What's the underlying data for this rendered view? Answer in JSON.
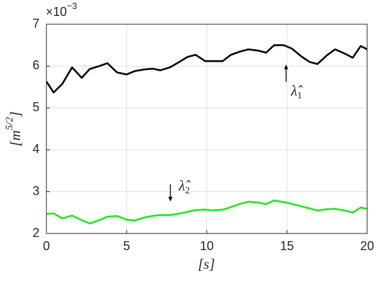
{
  "chart_data": {
    "type": "line",
    "x": [
      0,
      0.45,
      1.0,
      1.6,
      2.2,
      2.7,
      3.3,
      3.8,
      4.4,
      5.0,
      5.5,
      6.1,
      6.6,
      7.1,
      7.7,
      8.2,
      8.8,
      9.3,
      9.9,
      10.4,
      11.0,
      11.5,
      12.1,
      12.6,
      13.2,
      13.7,
      14.2,
      14.8,
      15.3,
      15.9,
      16.4,
      16.9,
      17.5,
      18.0,
      18.6,
      19.1,
      19.6,
      20.0
    ],
    "series": [
      {
        "color": "#000000",
        "values": [
          5.63,
          5.37,
          5.58,
          5.97,
          5.72,
          5.93,
          6.0,
          6.07,
          5.85,
          5.8,
          5.88,
          5.92,
          5.94,
          5.9,
          5.97,
          6.08,
          6.22,
          6.27,
          6.12,
          6.12,
          6.12,
          6.27,
          6.35,
          6.4,
          6.37,
          6.32,
          6.5,
          6.5,
          6.42,
          6.23,
          6.1,
          6.05,
          6.26,
          6.4,
          6.3,
          6.2,
          6.48,
          6.4
        ]
      },
      {
        "color": "#1fe61f",
        "values": [
          2.47,
          2.48,
          2.36,
          2.43,
          2.32,
          2.24,
          2.32,
          2.4,
          2.42,
          2.33,
          2.31,
          2.38,
          2.42,
          2.44,
          2.44,
          2.47,
          2.52,
          2.56,
          2.57,
          2.55,
          2.57,
          2.63,
          2.71,
          2.76,
          2.74,
          2.7,
          2.79,
          2.75,
          2.71,
          2.65,
          2.6,
          2.55,
          2.58,
          2.59,
          2.55,
          2.5,
          2.62,
          2.59
        ]
      }
    ],
    "xlim": [
      0,
      20
    ],
    "xticks": [
      0,
      5,
      10,
      15,
      20
    ],
    "ylim": [
      2,
      7
    ],
    "yticks": [
      2,
      3,
      4,
      5,
      6,
      7
    ],
    "grid": true,
    "y_multiplier": {
      "base": "×10",
      "exponent": "−3"
    },
    "xlabel": "[s]",
    "ylabel": {
      "text": "[m",
      "exponent": "5/2",
      "close": "]"
    },
    "annotations": [
      {
        "text": "λ̂",
        "subscript": "1"
      },
      {
        "text": "λ̂",
        "subscript": "2"
      }
    ]
  }
}
